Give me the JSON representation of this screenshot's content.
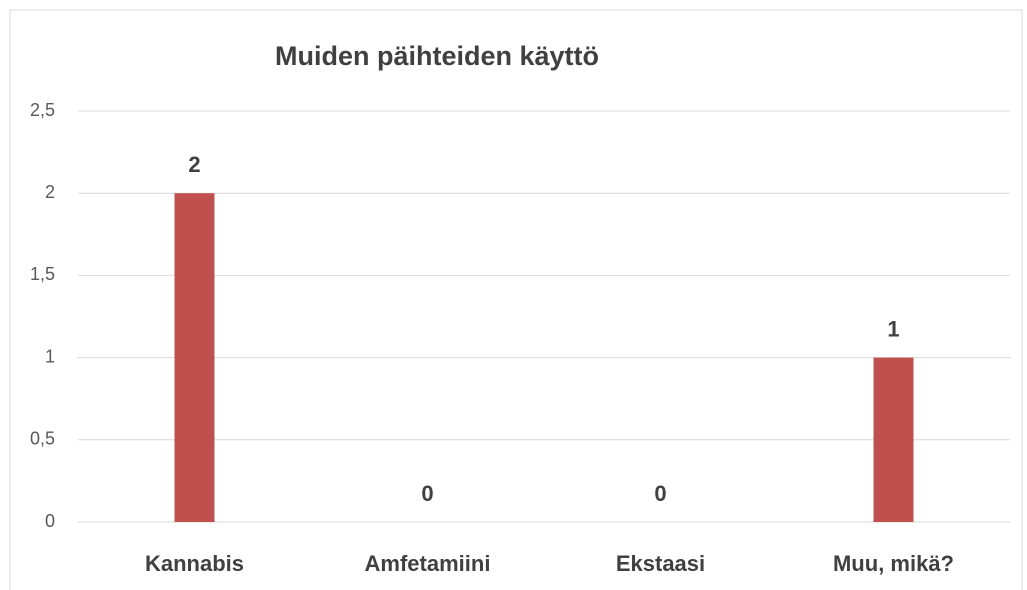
{
  "chart_data": {
    "type": "bar",
    "title": "Muiden päihteiden käyttö",
    "categories": [
      "Kannabis",
      "Amfetamiini",
      "Ekstaasi",
      "Muu, mikä?"
    ],
    "values": [
      2,
      0,
      0,
      1
    ],
    "color": "#c0504d",
    "ylim": [
      0,
      2.5
    ],
    "yticks": [
      0,
      {
        "value": 0.5,
        "label": "0,5"
      },
      1,
      {
        "value": 1.5,
        "label": "1,5"
      },
      2,
      {
        "value": 2.5,
        "label": "2,5"
      }
    ],
    "grid": true
  }
}
